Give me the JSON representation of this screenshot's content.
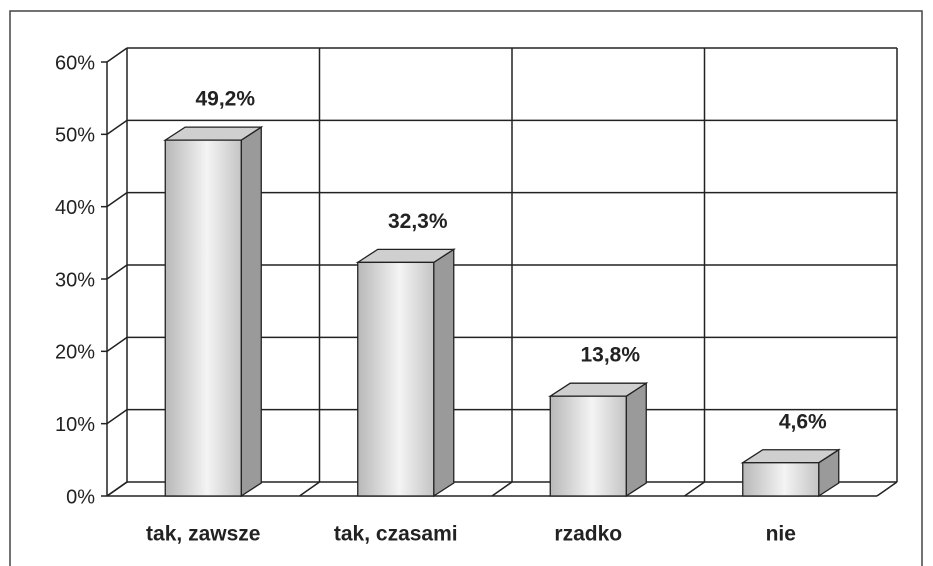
{
  "chart_data": {
    "type": "bar3d",
    "categories": [
      "tak, zawsze",
      "tak, czasami",
      "rzadko",
      "nie"
    ],
    "values": [
      49.2,
      32.3,
      13.8,
      4.6
    ],
    "value_labels": [
      "49,2%",
      "32,3%",
      "13,8%",
      "4,6%"
    ],
    "ylim": [
      0,
      60
    ],
    "yticks": [
      {
        "value": 0,
        "label": "0%"
      },
      {
        "value": 10,
        "label": "10%"
      },
      {
        "value": 20,
        "label": "20%"
      },
      {
        "value": 30,
        "label": "30%"
      },
      {
        "value": 40,
        "label": "40%"
      },
      {
        "value": 50,
        "label": "50%"
      },
      {
        "value": 60,
        "label": "60%"
      }
    ],
    "grid": true
  }
}
